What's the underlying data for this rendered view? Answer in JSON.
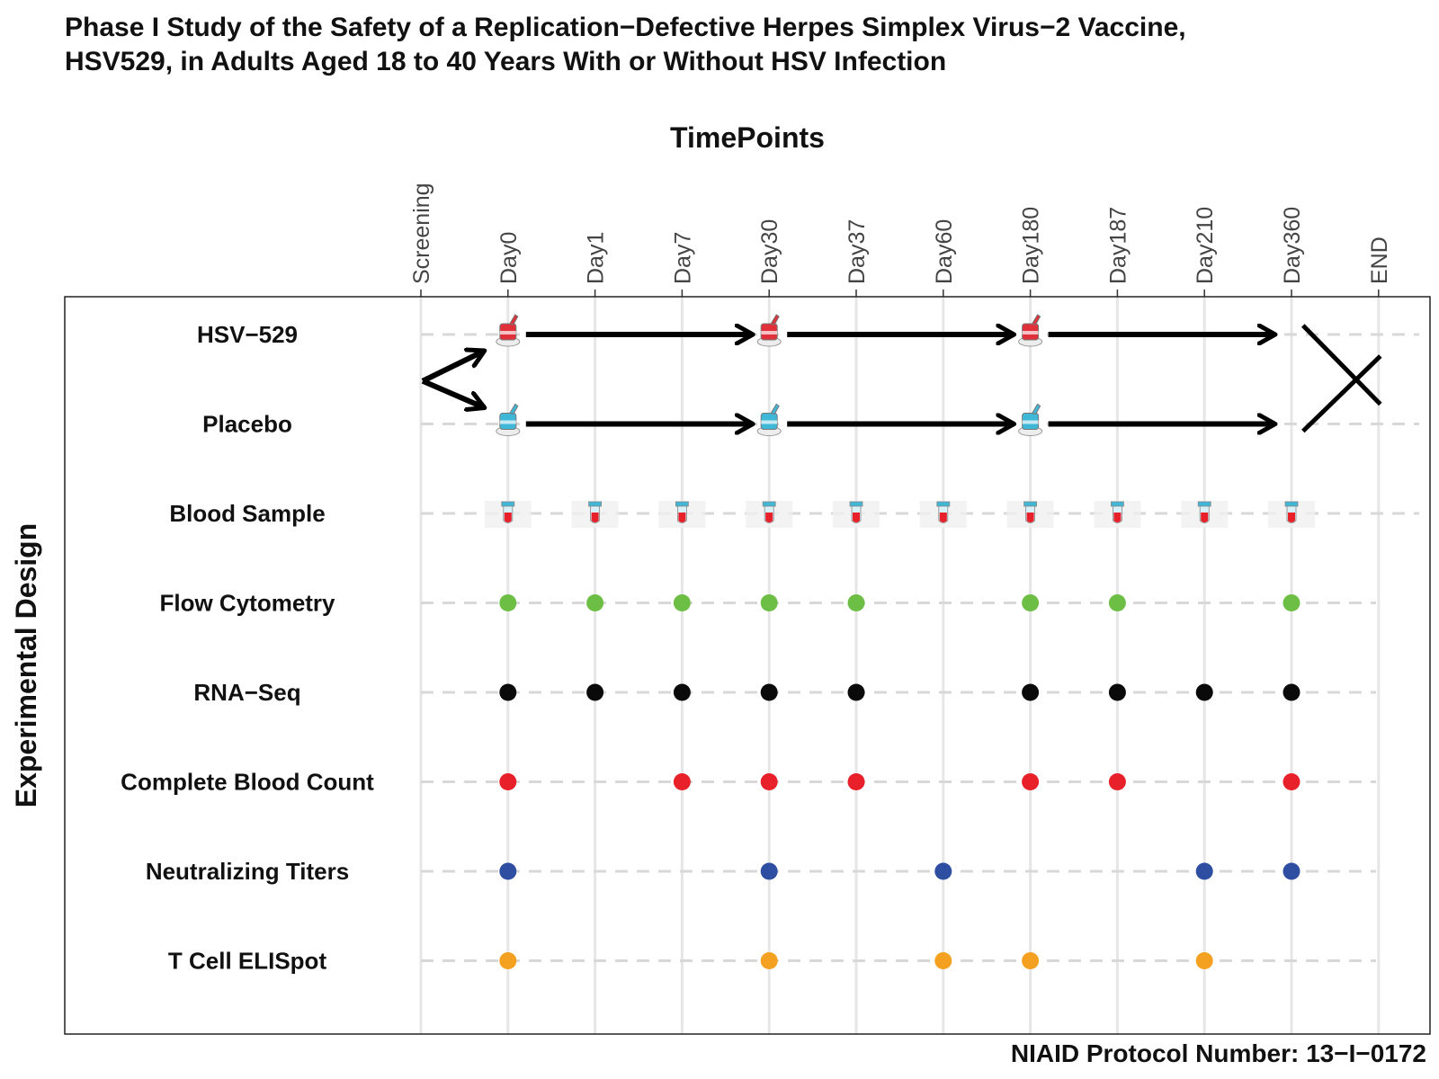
{
  "title": {
    "line1": "Phase I Study of the Safety of a Replication−Defective Herpes Simplex Virus−2 Vaccine,",
    "line2": "HSV529, in Adults Aged 18 to 40 Years With or Without HSV Infection"
  },
  "x_axis_title": "TimePoints",
  "y_axis_title": "Experimental Design",
  "footer": "NIAID Protocol Number: 13−I−0172",
  "colors": {
    "flow": "#6cbf44",
    "rna": "#0a0a0a",
    "cbc": "#e8202a",
    "titers": "#2e4ea1",
    "elispot": "#f4a020",
    "vaccine": "#e0303a",
    "placebo": "#3fb8d8",
    "grid": "#e6e6e6",
    "dash": "#d8d8d8"
  },
  "chart_data": {
    "type": "timeline",
    "timepoints": [
      "Screening",
      "Day0",
      "Day1",
      "Day7",
      "Day30",
      "Day37",
      "Day60",
      "Day180",
      "Day187",
      "Day210",
      "Day360",
      "END"
    ],
    "rows": [
      {
        "label": "HSV−529",
        "kind": "vaccine",
        "points": [
          "Day0",
          "Day30",
          "Day180"
        ],
        "arrow_end": "Day360"
      },
      {
        "label": "Placebo",
        "kind": "placebo",
        "points": [
          "Day0",
          "Day30",
          "Day180"
        ],
        "arrow_end": "Day360"
      },
      {
        "label": "Blood Sample",
        "kind": "tube",
        "points": [
          "Day0",
          "Day1",
          "Day7",
          "Day30",
          "Day37",
          "Day60",
          "Day180",
          "Day187",
          "Day210",
          "Day360"
        ]
      },
      {
        "label": "Flow Cytometry",
        "kind": "dot",
        "color_key": "flow",
        "points": [
          "Day0",
          "Day1",
          "Day7",
          "Day30",
          "Day37",
          "Day180",
          "Day187",
          "Day360"
        ]
      },
      {
        "label": "RNA−Seq",
        "kind": "dot",
        "color_key": "rna",
        "points": [
          "Day0",
          "Day1",
          "Day7",
          "Day30",
          "Day37",
          "Day180",
          "Day187",
          "Day210",
          "Day360"
        ]
      },
      {
        "label": "Complete Blood Count",
        "kind": "dot",
        "color_key": "cbc",
        "points": [
          "Day0",
          "Day7",
          "Day30",
          "Day37",
          "Day180",
          "Day187",
          "Day360"
        ]
      },
      {
        "label": "Neutralizing Titers",
        "kind": "dot",
        "color_key": "titers",
        "points": [
          "Day0",
          "Day30",
          "Day60",
          "Day210",
          "Day360"
        ]
      },
      {
        "label": "T Cell ELISpot",
        "kind": "dot",
        "color_key": "elispot",
        "points": [
          "Day0",
          "Day30",
          "Day60",
          "Day180",
          "Day210"
        ]
      }
    ],
    "randomization": {
      "from": "Screening",
      "to": "Day0",
      "rows": [
        "HSV−529",
        "Placebo"
      ]
    },
    "end_marker": "END"
  }
}
